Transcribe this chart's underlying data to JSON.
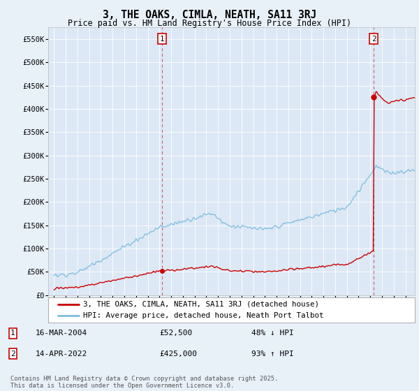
{
  "title": "3, THE OAKS, CIMLA, NEATH, SA11 3RJ",
  "subtitle": "Price paid vs. HM Land Registry's House Price Index (HPI)",
  "hpi_label": "HPI: Average price, detached house, Neath Port Talbot",
  "property_label": "3, THE OAKS, CIMLA, NEATH, SA11 3RJ (detached house)",
  "sale1_date": "16-MAR-2004",
  "sale1_price": 52500,
  "sale1_pct": "48% ↓ HPI",
  "sale2_date": "14-APR-2022",
  "sale2_price": 425000,
  "sale2_pct": "93% ↑ HPI",
  "footer": "Contains HM Land Registry data © Crown copyright and database right 2025.\nThis data is licensed under the Open Government Licence v3.0.",
  "background_color": "#e8f0f8",
  "plot_bg_color": "#dce8f5",
  "hpi_color": "#7bbce0",
  "sale_color": "#cc0000",
  "ylim_max": 575000,
  "ylim_min": 0,
  "xlim_min": 1994.5,
  "xlim_max": 2025.8
}
